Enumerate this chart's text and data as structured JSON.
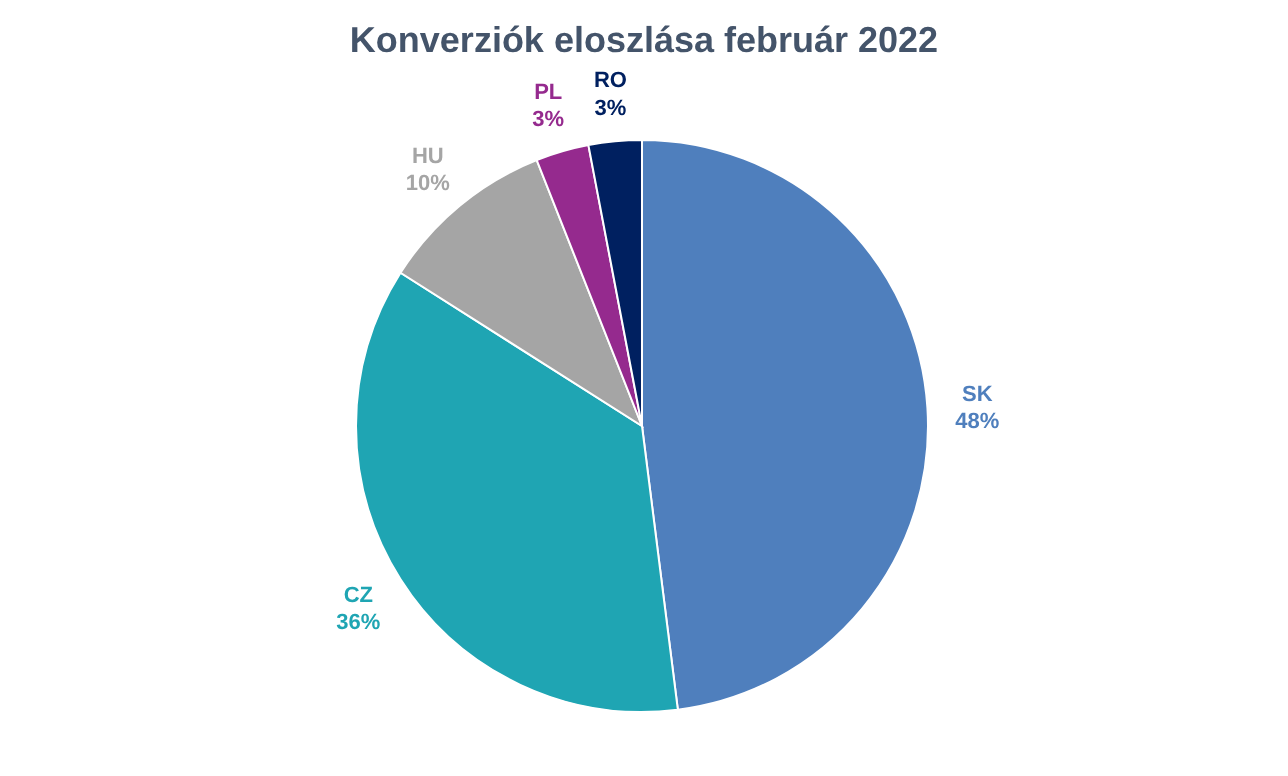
{
  "chart_data": {
    "type": "pie",
    "title": "Konverziók eloszlása február 2022",
    "categories": [
      "SK",
      "CZ",
      "HU",
      "PL",
      "RO"
    ],
    "values": [
      48,
      36,
      10,
      3,
      3
    ],
    "value_labels": [
      "48%",
      "36%",
      "10%",
      "3%",
      "3%"
    ],
    "colors": [
      "#4f7fbd",
      "#1fa5b3",
      "#a5a5a5",
      "#952a8e",
      "#002060"
    ]
  }
}
